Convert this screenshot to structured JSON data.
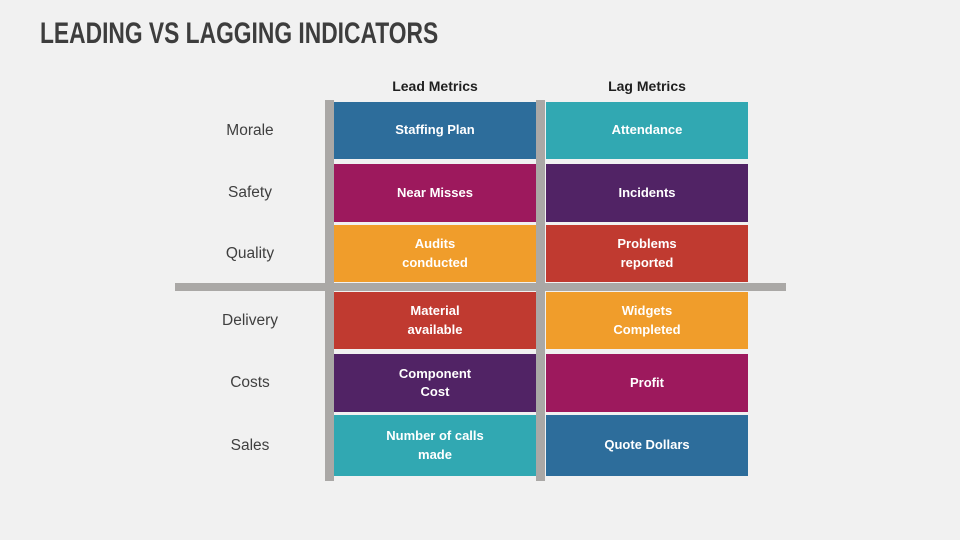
{
  "title": "LEADING VS LAGGING INDICATORS",
  "columns": {
    "lead": "Lead Metrics",
    "lag": "Lag Metrics"
  },
  "colors": {
    "background": "#f1f1f1",
    "axis_bar": "#aaa8a6",
    "blue": "#2d6d9b",
    "teal": "#31a8b2",
    "magenta": "#9d195d",
    "purple": "#512365",
    "orange": "#f09d2b",
    "red": "#c03a30"
  },
  "rows": [
    {
      "label": "Morale",
      "lead": {
        "text": "Staffing Plan",
        "color": "#2d6d9b"
      },
      "lag": {
        "text": "Attendance",
        "color": "#31a8b2"
      }
    },
    {
      "label": "Safety",
      "lead": {
        "text": "Near Misses",
        "color": "#9d195d"
      },
      "lag": {
        "text": "Incidents",
        "color": "#512365"
      }
    },
    {
      "label": "Quality",
      "lead": {
        "text": "Audits\nconducted",
        "color": "#f09d2b"
      },
      "lag": {
        "text": "Problems\nreported",
        "color": "#c03a30"
      }
    },
    {
      "label": "Delivery",
      "lead": {
        "text": "Material\navailable",
        "color": "#c03a30"
      },
      "lag": {
        "text": "Widgets\nCompleted",
        "color": "#f09d2b"
      }
    },
    {
      "label": "Costs",
      "lead": {
        "text": "Component\nCost",
        "color": "#512365"
      },
      "lag": {
        "text": "Profit",
        "color": "#9d195d"
      }
    },
    {
      "label": "Sales",
      "lead": {
        "text": "Number of calls\nmade",
        "color": "#31a8b2"
      },
      "lag": {
        "text": "Quote Dollars",
        "color": "#2d6d9b"
      }
    }
  ]
}
